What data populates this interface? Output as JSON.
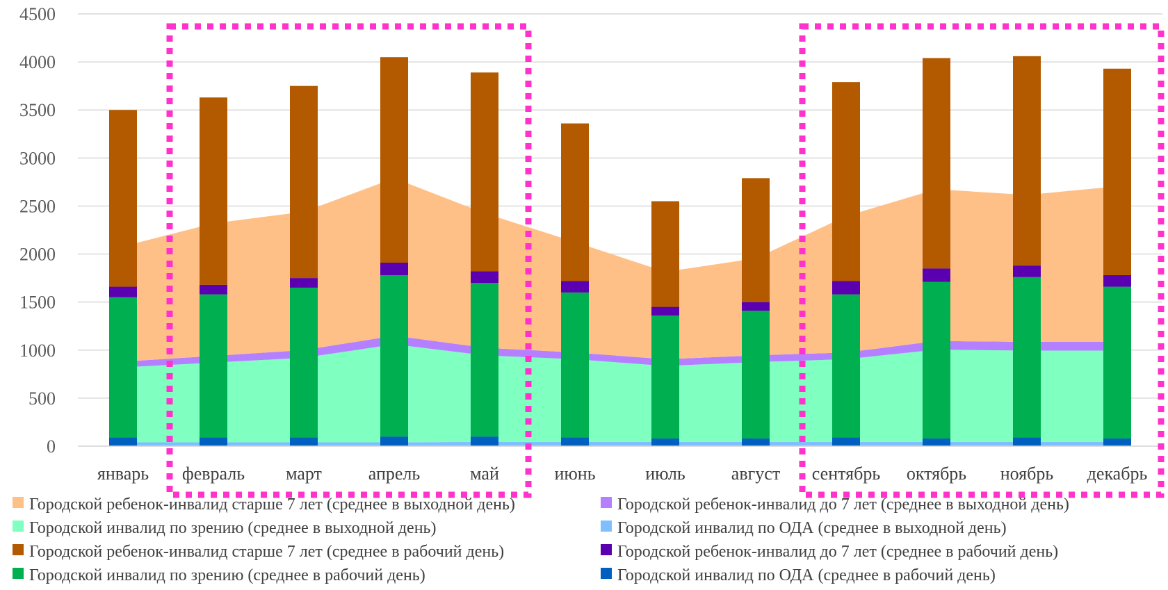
{
  "chart_data": {
    "type": "bar",
    "subtype": "stacked-bar-with-stacked-area",
    "title": "",
    "xlabel": "",
    "ylabel": "",
    "ylim": [
      0,
      4500
    ],
    "yticks": [
      0,
      500,
      1000,
      1500,
      2000,
      2500,
      3000,
      3500,
      4000,
      4500
    ],
    "grid": true,
    "legend_position": "bottom",
    "categories": [
      "январь",
      "февраль",
      "март",
      "апрель",
      "май",
      "июнь",
      "июль",
      "август",
      "сентябрь",
      "октябрь",
      "ноябрь",
      "декабрь"
    ],
    "area_series": [
      {
        "name": "Городской инвалид по ОДА (среднее в выходной день)",
        "color": "#7fbfff",
        "values": [
          40,
          40,
          40,
          40,
          45,
          45,
          45,
          45,
          45,
          45,
          45,
          45
        ]
      },
      {
        "name": "Городской инвалид по зрению (среднее в выходной день)",
        "color": "#7fffc0",
        "values": [
          780,
          830,
          880,
          1020,
          900,
          860,
          790,
          830,
          860,
          960,
          950,
          950
        ]
      },
      {
        "name": "Городской ребенок-инвалид до 7 лет (среднее в выходной день)",
        "color": "#b580ff",
        "values": [
          60,
          70,
          80,
          90,
          80,
          70,
          70,
          70,
          70,
          90,
          90,
          90
        ]
      },
      {
        "name": "Городской ребенок-инвалид старше 7 лет (среднее в выходной день)",
        "color": "#ffc087",
        "values": [
          1200,
          1380,
          1440,
          1640,
          1400,
          1150,
          910,
          1010,
          1420,
          1580,
          1530,
          1620
        ]
      }
    ],
    "bar_series": [
      {
        "name": "Городской инвалид по ОДА (среднее в рабочий день)",
        "color": "#0060c0",
        "values": [
          90,
          90,
          90,
          100,
          100,
          90,
          80,
          80,
          90,
          80,
          90,
          80
        ]
      },
      {
        "name": "Городской инвалид по зрению (среднее в рабочий день)",
        "color": "#00b050",
        "values": [
          1460,
          1490,
          1560,
          1680,
          1600,
          1510,
          1280,
          1330,
          1490,
          1630,
          1670,
          1580
        ]
      },
      {
        "name": "Городской ребенок-инвалид до 7 лет (среднее в рабочий день)",
        "color": "#5b00b0",
        "values": [
          110,
          100,
          100,
          130,
          120,
          120,
          90,
          90,
          140,
          140,
          120,
          120
        ]
      },
      {
        "name": "Городской ребенок-инвалид старше 7 лет (среднее в рабочий день)",
        "color": "#b35900",
        "values": [
          1840,
          1950,
          2000,
          2140,
          2070,
          1640,
          1100,
          1290,
          2070,
          2190,
          2180,
          2150
        ]
      }
    ],
    "legend": [
      {
        "label": "Городской ребенок-инвалид старше 7 лет (среднее в выходной день)",
        "color": "#ffc087"
      },
      {
        "label": "Городской ребенок-инвалид до 7 лет (среднее в выходной день)",
        "color": "#b580ff"
      },
      {
        "label": "Городской инвалид по зрению (среднее в выходной день)",
        "color": "#7fffc0"
      },
      {
        "label": "Городской инвалид по ОДА (среднее в выходной день)",
        "color": "#7fbfff"
      },
      {
        "label": "Городской ребенок-инвалид старше 7 лет (среднее в рабочий день)",
        "color": "#b35900"
      },
      {
        "label": "Городской ребенок-инвалид до 7 лет (среднее в рабочий день)",
        "color": "#5b00b0"
      },
      {
        "label": "Городской инвалид по зрению (среднее в рабочий день)",
        "color": "#00b050"
      },
      {
        "label": "Городской инвалид по ОДА (среднее в рабочий день)",
        "color": "#0060c0"
      }
    ],
    "highlights": [
      {
        "label": "февраль – май",
        "from_category": "февраль",
        "to_category": "май",
        "color": "#ff33cc",
        "style": "dotted-box"
      },
      {
        "label": "сентябрь – декабрь",
        "from_category": "сентябрь",
        "to_category": "декабрь",
        "color": "#ff33cc",
        "style": "dotted-box"
      }
    ]
  }
}
